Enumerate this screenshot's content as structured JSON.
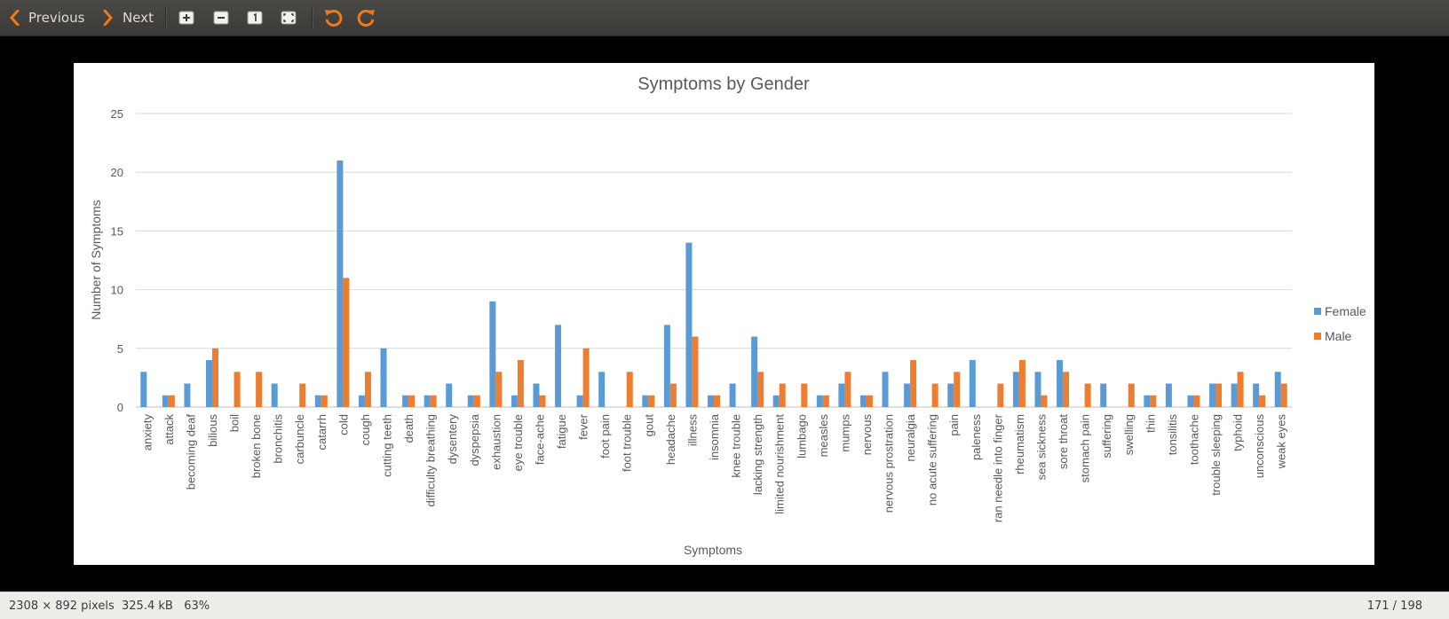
{
  "toolbar": {
    "previous_label": "Previous",
    "next_label": "Next",
    "buttons": [
      "zoom-in-icon",
      "zoom-out-icon",
      "actual-size-icon",
      "best-fit-icon",
      "rotate-left-icon",
      "rotate-right-icon"
    ]
  },
  "status": {
    "dimensions": "2308 × 892 pixels",
    "size": "325.4 kB",
    "zoom": "63%",
    "position": "171 / 198"
  },
  "colors": {
    "female": "#5b9bd5",
    "male": "#ed7d31",
    "rotate_icon": "#f07a1a"
  },
  "chart_data": {
    "type": "bar",
    "title": "Symptoms by Gender",
    "xlabel": "Symptoms",
    "ylabel": "Number  of Symptoms",
    "ylim": [
      0,
      25
    ],
    "yticks": [
      0,
      5,
      10,
      15,
      20,
      25
    ],
    "grid": true,
    "legend_position": "right",
    "categories": [
      "anxiety",
      "attack",
      "becoming deaf",
      "bilious",
      "boil",
      "broken bone",
      "bronchitis",
      "carbuncle",
      "catarrh",
      "cold",
      "cough",
      "cutting teeth",
      "death",
      "difficulty breathing",
      "dysentery",
      "dyspepsia",
      "exhaustion",
      "eye trouble",
      "face-ache",
      "fatigue",
      "fever",
      "foot pain",
      "foot trouble",
      "gout",
      "headache",
      "illness",
      "insomnia",
      "knee trouble",
      "lacking strength",
      "limited nourishment",
      "lumbago",
      "measles",
      "mumps",
      "nervous",
      "nervous prostration",
      "neuralgia",
      "no acute suffering",
      "pain",
      "paleness",
      "ran needle into finger",
      "rheumatism",
      "sea sickness",
      "sore throat",
      "stomach pain",
      "suffering",
      "swelling",
      "thin",
      "tonsilitis",
      "toothache",
      "trouble sleeping",
      "typhoid",
      "unconscious",
      "weak eyes"
    ],
    "series": [
      {
        "name": "Female",
        "values": [
          3,
          1,
          2,
          4,
          0,
          0,
          2,
          0,
          1,
          21,
          1,
          5,
          1,
          1,
          2,
          1,
          9,
          1,
          2,
          7,
          1,
          3,
          0,
          1,
          7,
          14,
          1,
          2,
          6,
          1,
          0,
          1,
          2,
          1,
          3,
          2,
          0,
          2,
          4,
          0,
          3,
          3,
          4,
          0,
          2,
          0,
          1,
          2,
          1,
          2,
          2,
          2,
          3
        ]
      },
      {
        "name": "Male",
        "values": [
          0,
          1,
          0,
          5,
          3,
          3,
          0,
          2,
          1,
          11,
          3,
          0,
          1,
          1,
          0,
          1,
          3,
          4,
          1,
          0,
          5,
          0,
          3,
          1,
          2,
          6,
          1,
          0,
          3,
          2,
          2,
          1,
          3,
          1,
          0,
          4,
          2,
          3,
          0,
          2,
          4,
          1,
          3,
          2,
          0,
          2,
          1,
          0,
          1,
          2,
          3,
          1,
          2
        ]
      }
    ]
  }
}
